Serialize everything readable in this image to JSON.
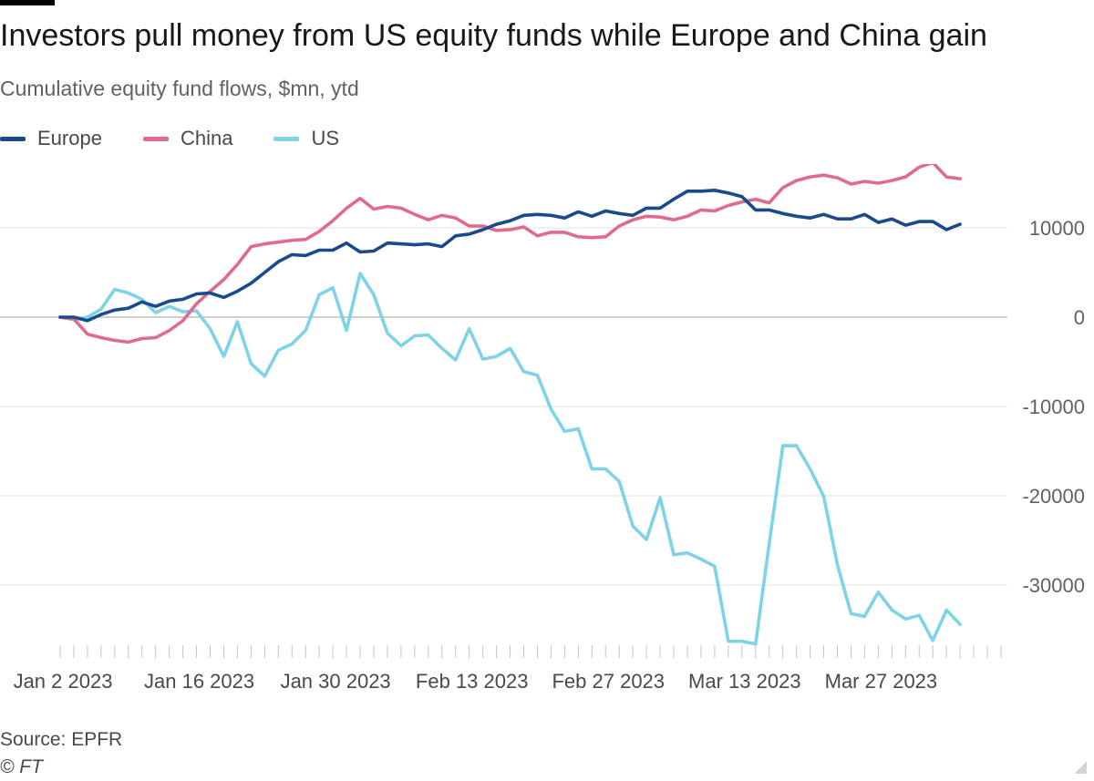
{
  "header": {
    "title": "Investors pull money from US equity funds while Europe and China gain",
    "subtitle": "Cumulative equity fund flows, $mn, ytd"
  },
  "legend": [
    {
      "name": "Europe",
      "color": "#1a4a8c"
    },
    {
      "name": "China",
      "color": "#e06b8f"
    },
    {
      "name": "US",
      "color": "#7fd3e6"
    }
  ],
  "footer": {
    "source": "Source: EPFR",
    "copyright": "© FT"
  },
  "chart_data": {
    "type": "line",
    "title": "Investors pull money from US equity funds while Europe and China gain",
    "subtitle": "Cumulative equity fund flows, $mn, ytd",
    "xlabel": "",
    "ylabel": "",
    "x_start": "Jan 2 2023",
    "x_interval": "daily trading (weekdays)",
    "xlim": [
      0,
      69
    ],
    "ylim": [
      -37000,
      19000
    ],
    "yticks": [
      10000,
      0,
      -10000,
      -20000,
      -30000
    ],
    "ytick_labels": [
      "10000",
      "0",
      "-10000",
      "-20000",
      "-30000"
    ],
    "xticks": [
      0,
      10,
      20,
      30,
      40,
      50,
      60
    ],
    "xtick_labels": [
      "Jan 2 2023",
      "Jan 16 2023",
      "Jan 30 2023",
      "Feb 13 2023",
      "Feb 27 2023",
      "Mar 13 2023",
      "Mar 27 2023"
    ],
    "grid": "horizontal",
    "legend_position": "top-left",
    "y_axis_position": "right",
    "series": [
      {
        "name": "Europe",
        "color": "#1a4a8c",
        "values": [
          0,
          0,
          -400,
          300,
          800,
          1000,
          1700,
          1200,
          1800,
          2000,
          2600,
          2700,
          2200,
          2900,
          3800,
          5000,
          6200,
          7000,
          6900,
          7500,
          7500,
          8300,
          7300,
          7400,
          8300,
          8200,
          8100,
          8200,
          7900,
          9100,
          9300,
          9800,
          10400,
          10800,
          11400,
          11500,
          11400,
          11100,
          11800,
          11300,
          11900,
          11600,
          11400,
          12200,
          12200,
          13200,
          14100,
          14100,
          14200,
          13900,
          13500,
          12000,
          12000,
          11600,
          11300,
          11100,
          11500,
          11000,
          11000,
          11500,
          10600,
          11000,
          10300,
          10700,
          10700,
          9800,
          10400
        ]
      },
      {
        "name": "China",
        "color": "#e06b8f",
        "values": [
          0,
          -200,
          -1900,
          -2300,
          -2600,
          -2800,
          -2400,
          -2300,
          -1500,
          -400,
          1500,
          2900,
          4200,
          5900,
          7900,
          8200,
          8400,
          8600,
          8700,
          9600,
          10800,
          12200,
          13300,
          12100,
          12400,
          12200,
          11500,
          10900,
          11400,
          11100,
          10200,
          10200,
          9700,
          9800,
          10100,
          9100,
          9500,
          9500,
          9000,
          8900,
          9000,
          10200,
          10900,
          11300,
          11200,
          10900,
          11300,
          12000,
          11900,
          12500,
          12900,
          13200,
          12800,
          14500,
          15300,
          15700,
          15900,
          15600,
          14900,
          15200,
          15000,
          15300,
          15700,
          16800,
          17300,
          15700,
          15500
        ]
      },
      {
        "name": "US",
        "color": "#7fd3e6",
        "values": [
          0,
          -300,
          0,
          900,
          3100,
          2700,
          2000,
          500,
          1200,
          600,
          700,
          -1300,
          -4400,
          -500,
          -5200,
          -6600,
          -3700,
          -3000,
          -1500,
          2500,
          3300,
          -1500,
          4900,
          2500,
          -1800,
          -3200,
          -2100,
          -2000,
          -3500,
          -4800,
          -1300,
          -4700,
          -4400,
          -3500,
          -6100,
          -6500,
          -10300,
          -12800,
          -12500,
          -17000,
          -17000,
          -18400,
          -23400,
          -24900,
          -20200,
          -26600,
          -26400,
          -27100,
          -27900,
          -36300,
          -36300,
          -36600,
          -25400,
          -14400,
          -14400,
          -17000,
          -20100,
          -27700,
          -33200,
          -33500,
          -30800,
          -32800,
          -33800,
          -33400,
          -36200,
          -32800,
          -34400
        ]
      }
    ]
  }
}
